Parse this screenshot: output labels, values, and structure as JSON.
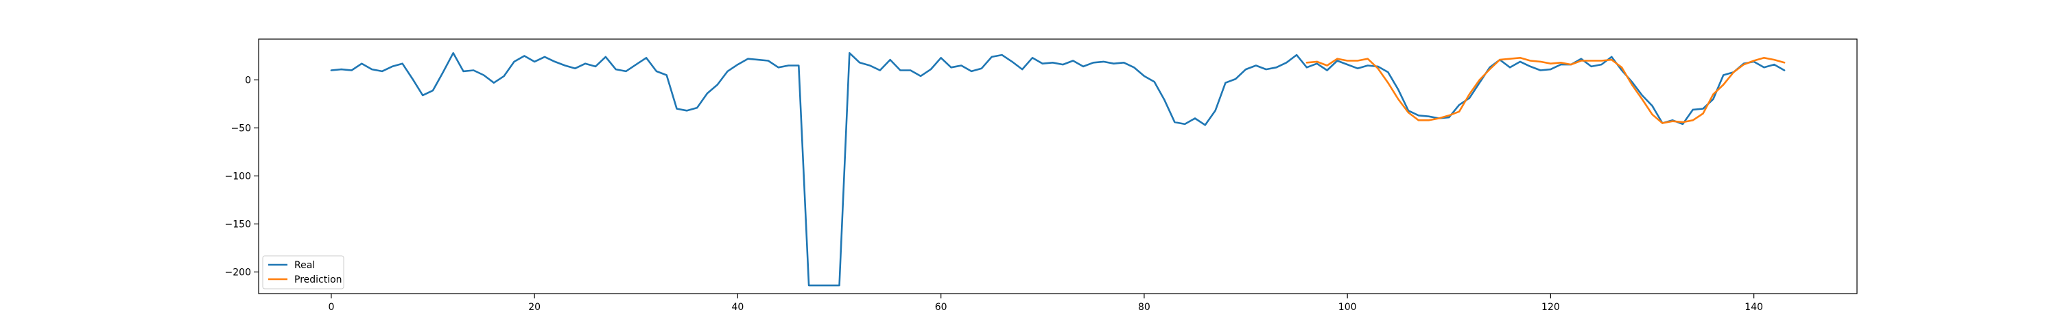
{
  "chart_data": {
    "type": "line",
    "title": "",
    "xlabel": "",
    "ylabel": "",
    "xlim": [
      -7.15,
      150.15
    ],
    "ylim": [
      -222.5,
      42.5
    ],
    "x_ticks": [
      0,
      20,
      40,
      60,
      80,
      100,
      120,
      140
    ],
    "y_ticks": [
      0,
      -50,
      -100,
      -150,
      -200
    ],
    "grid": false,
    "legend_position": "lower left",
    "series": [
      {
        "name": "Real",
        "color": "#1f77b4",
        "x_start": 0,
        "values": [
          10,
          11,
          10,
          17,
          11,
          9,
          14,
          17,
          1,
          -16,
          -11,
          8,
          28,
          9,
          10,
          5,
          -3,
          4,
          19,
          25,
          19,
          24,
          19,
          15,
          12,
          17,
          14,
          24,
          11,
          9,
          16,
          23,
          9,
          5,
          -30,
          -32,
          -29,
          -14,
          -5,
          9,
          16,
          22,
          21,
          20,
          13,
          15,
          15,
          -214,
          -214,
          -214,
          -214,
          28,
          18,
          15,
          10,
          21,
          10,
          10,
          4,
          11,
          23,
          13,
          15,
          9,
          12,
          24,
          26,
          19,
          11,
          23,
          17,
          18,
          16,
          20,
          14,
          18,
          19,
          17,
          18,
          13,
          4,
          -2,
          -21,
          -44,
          -46,
          -40,
          -47,
          -32,
          -3,
          1,
          11,
          15,
          11,
          13,
          18,
          26,
          13,
          17,
          10,
          20,
          16,
          12,
          15,
          14,
          8,
          -10,
          -32,
          -37,
          -38,
          -40,
          -39,
          -26,
          -19,
          -3,
          13,
          21,
          13,
          19,
          14,
          10,
          11,
          16,
          16,
          22,
          14,
          16,
          24,
          10,
          -2,
          -16,
          -27,
          -45,
          -42,
          -46,
          -31,
          -30,
          -20,
          5,
          8,
          17,
          19,
          13,
          16,
          10
        ]
      },
      {
        "name": "Prediction",
        "color": "#ff7f0e",
        "x_start": 96,
        "values": [
          18,
          19,
          15,
          22,
          20,
          20,
          22,
          12,
          -3,
          -20,
          -34,
          -42,
          -42,
          -40,
          -37,
          -33,
          -15,
          0,
          11,
          21,
          22,
          23,
          20,
          19,
          17,
          18,
          16,
          20,
          20,
          20,
          21,
          13,
          -5,
          -20,
          -36,
          -45,
          -43,
          -44,
          -42,
          -35,
          -15,
          -5,
          8,
          16,
          20,
          23,
          21,
          18
        ]
      }
    ]
  }
}
